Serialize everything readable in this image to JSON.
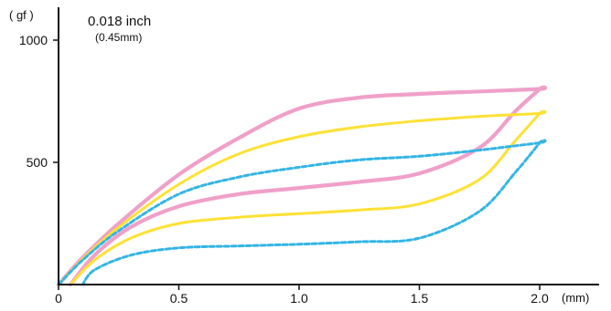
{
  "chart_data": {
    "type": "line",
    "title": "0.018 inch",
    "subtitle": "(0.45mm)",
    "xlabel": "(mm)",
    "ylabel": "( gf )",
    "xlim": [
      0,
      2.2
    ],
    "ylim": [
      0,
      1100
    ],
    "x_ticks": [
      {
        "value": 0,
        "label": "0"
      },
      {
        "value": 0.5,
        "label": "0.5"
      },
      {
        "value": 1.0,
        "label": "1.0"
      },
      {
        "value": 1.5,
        "label": "1.5"
      },
      {
        "value": 2.0,
        "label": "2.0"
      }
    ],
    "y_ticks": [
      {
        "value": 500,
        "label": "500"
      },
      {
        "value": 1000,
        "label": "1000"
      }
    ],
    "grid": false,
    "legend": "none",
    "series": [
      {
        "color": "#F0A0C8",
        "style": "solid",
        "width": "thick",
        "x": [
          0,
          0.1,
          0.25,
          0.5,
          0.75,
          1.0,
          1.25,
          1.5,
          1.75,
          2.0,
          2.0,
          1.9,
          1.75,
          1.5,
          1.25,
          1.0,
          0.75,
          0.5,
          0.3,
          0.15,
          0.05
        ],
        "y": [
          0,
          110,
          250,
          450,
          600,
          720,
          765,
          780,
          790,
          800,
          800,
          710,
          560,
          455,
          420,
          395,
          370,
          320,
          235,
          120,
          0
        ]
      },
      {
        "color": "#FFE135",
        "style": "solid",
        "width": "medium",
        "x": [
          0,
          0.1,
          0.25,
          0.5,
          0.75,
          1.0,
          1.25,
          1.5,
          1.75,
          2.0,
          2.0,
          1.9,
          1.75,
          1.5,
          1.25,
          1.0,
          0.75,
          0.5,
          0.3,
          0.15,
          0.05
        ],
        "y": [
          0,
          105,
          235,
          410,
          535,
          605,
          645,
          670,
          688,
          700,
          700,
          590,
          430,
          330,
          305,
          290,
          275,
          250,
          190,
          100,
          0
        ]
      },
      {
        "color": "#33B5E5",
        "style": "dashed",
        "width": "medium",
        "x": [
          0,
          0.1,
          0.25,
          0.5,
          0.75,
          1.0,
          1.25,
          1.5,
          1.75,
          2.0,
          2.0,
          1.9,
          1.75,
          1.5,
          1.25,
          1.0,
          0.75,
          0.5,
          0.3,
          0.15,
          0.1
        ],
        "y": [
          0,
          100,
          220,
          370,
          440,
          480,
          510,
          525,
          550,
          580,
          580,
          460,
          300,
          190,
          175,
          165,
          158,
          150,
          120,
          60,
          0
        ]
      }
    ]
  }
}
